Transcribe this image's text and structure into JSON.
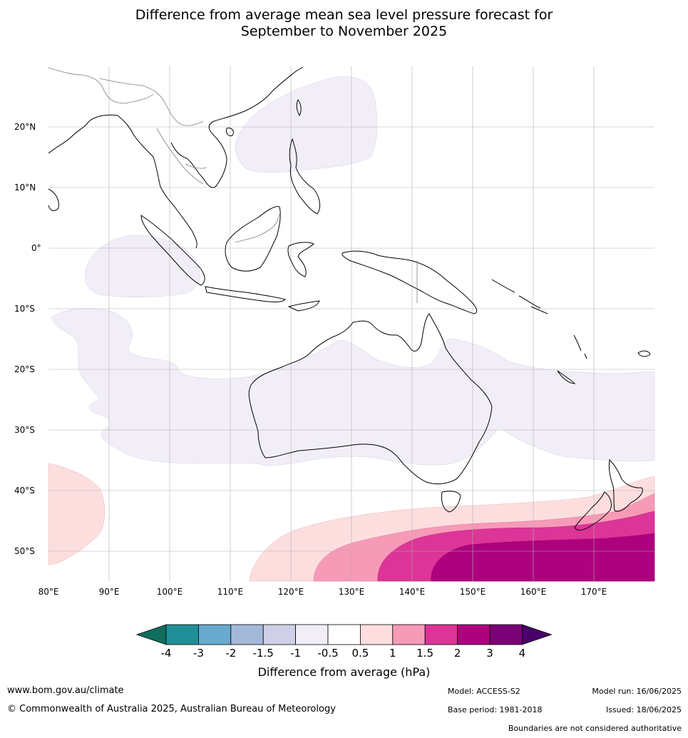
{
  "title_line1": "Difference from average mean sea level pressure forecast for",
  "title_line2": "September to November 2025",
  "map": {
    "lat_labels": [
      "20°N",
      "10°N",
      "0°",
      "10°S",
      "20°S",
      "30°S",
      "40°S",
      "50°S"
    ],
    "lon_labels": [
      "80°E",
      "90°E",
      "100°E",
      "110°E",
      "120°E",
      "130°E",
      "140°E",
      "150°E",
      "160°E",
      "170°E"
    ],
    "lon_range": [
      80,
      180
    ],
    "lat_range": [
      -55,
      30
    ],
    "grid": true
  },
  "colorbar": {
    "ticks": [
      "-4",
      "-3",
      "-2",
      "-1.5",
      "-1",
      "-0.5",
      "0.5",
      "1",
      "1.5",
      "2",
      "3",
      "4"
    ],
    "colors": [
      "#0f6d5e",
      "#1f8f98",
      "#67a9cf",
      "#a4b9da",
      "#cfd0e8",
      "#f2eef7",
      "#ffffff",
      "#fddede",
      "#f69ab7",
      "#dd3497",
      "#ae017e",
      "#7a0177",
      "#49006a"
    ],
    "label": "Difference from average (hPa)"
  },
  "footer": {
    "url": "www.bom.gov.au/climate",
    "copyright": "© Commonwealth of Australia 2025, Australian Bureau of Meteorology",
    "model": "Model: ACCESS-S2",
    "base_period": "Base period: 1981-2018",
    "model_run": "Model run: 16/06/2025",
    "issued": "Issued: 18/06/2025",
    "disclaimer": "Boundaries are not considered authoritative"
  }
}
